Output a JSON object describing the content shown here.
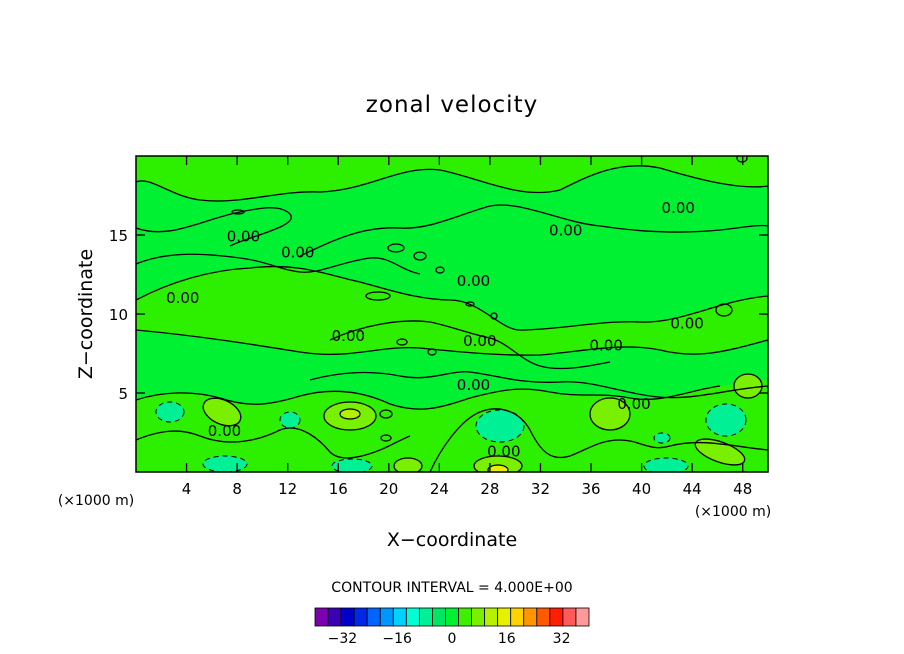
{
  "chart_data": {
    "type": "filled-contour",
    "title": "zonal velocity",
    "xlabel": "X−coordinate",
    "ylabel": "Z−coordinate",
    "x_unit": "(×1000 m)",
    "y_unit": "(×1000 m)",
    "xlim": [
      0,
      50
    ],
    "ylim": [
      0,
      20
    ],
    "x_ticks": [
      4,
      8,
      12,
      16,
      20,
      24,
      28,
      32,
      36,
      40,
      44,
      48
    ],
    "y_ticks": [
      5,
      10,
      15
    ],
    "grid": false,
    "contour_interval_text": "CONTOUR INTERVAL = 4.000E+00",
    "contour_interval": 4.0,
    "contour_labels": [
      {
        "text": "0.00",
        "x": 8.5,
        "z": 14.9
      },
      {
        "text": "0.00",
        "x": 12.8,
        "z": 13.9
      },
      {
        "text": "0.00",
        "x": 3.7,
        "z": 11.0
      },
      {
        "text": "0.00",
        "x": 16.8,
        "z": 8.6
      },
      {
        "text": "0.00",
        "x": 26.7,
        "z": 12.1
      },
      {
        "text": "0.00",
        "x": 34.0,
        "z": 15.3
      },
      {
        "text": "0.00",
        "x": 42.9,
        "z": 16.7
      },
      {
        "text": "0.00",
        "x": 27.2,
        "z": 8.3
      },
      {
        "text": "0.00",
        "x": 37.2,
        "z": 8.0
      },
      {
        "text": "0.00",
        "x": 43.6,
        "z": 9.4
      },
      {
        "text": "0.00",
        "x": 26.7,
        "z": 5.5
      },
      {
        "text": "0.00",
        "x": 39.4,
        "z": 4.3
      },
      {
        "text": "0.00",
        "x": 7.0,
        "z": 2.6
      },
      {
        "text": "0.00",
        "x": 29.1,
        "z": 1.3
      }
    ],
    "colorbar": {
      "levels": [
        -40,
        -36,
        -32,
        -28,
        -24,
        -20,
        -16,
        -12,
        -8,
        -4,
        0,
        4,
        8,
        12,
        16,
        20,
        24,
        28,
        32,
        36,
        40
      ],
      "tick_labels": [
        "−32",
        "−16",
        "0",
        "16",
        "32"
      ],
      "tick_values": [
        -32,
        -16,
        0,
        16,
        32
      ],
      "colors": [
        "#7a00b0",
        "#3c00b4",
        "#0000c8",
        "#0028e6",
        "#0064ff",
        "#0096ff",
        "#00d2ff",
        "#00ffd2",
        "#00f096",
        "#00e664",
        "#00f032",
        "#3cf000",
        "#78f000",
        "#b4f000",
        "#e6f000",
        "#ffd200",
        "#ff9600",
        "#ff5a00",
        "#ff1e00",
        "#ff5a5a",
        "#ff9a9a"
      ]
    }
  }
}
